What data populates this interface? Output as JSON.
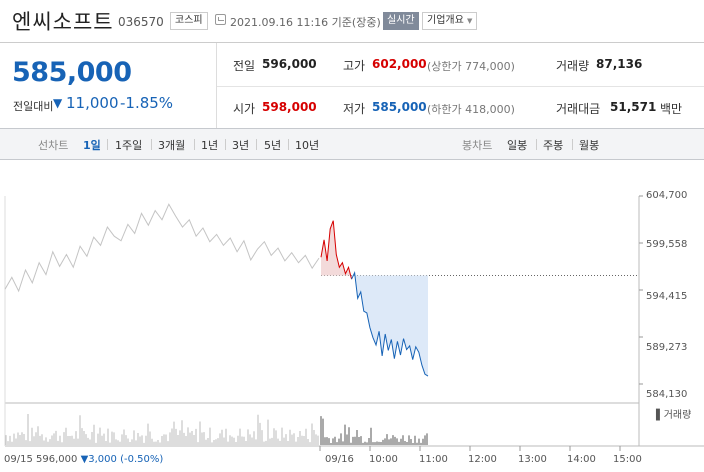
{
  "header": {
    "company_name": "엔씨소프트",
    "code": "036570",
    "market": "코스피",
    "timestamp": "2021.09.16 11:16 기준(장중)",
    "realtime_label": "실시간",
    "company_info_label": "기업개요",
    "clock_icon": "clock-icon"
  },
  "summary": {
    "price": "585,000",
    "change_label": "전일대비",
    "change_icon": "down-triangle-icon",
    "change_arrow": "▼",
    "change_value": "11,000",
    "change_pct": "-1.85%",
    "prev_close": {
      "label": "전일",
      "value": "596,000"
    },
    "high": {
      "label": "고가",
      "value": "602,000",
      "limit_label": "(상한가 774,000)"
    },
    "volume": {
      "label": "거래량",
      "value": "87,136"
    },
    "open": {
      "label": "시가",
      "value": "598,000"
    },
    "low": {
      "label": "저가",
      "value": "585,000",
      "limit_label": "(하한가 418,000)"
    },
    "trade_value": {
      "label": "거래대금",
      "value": "51,571",
      "unit": "백만"
    }
  },
  "tabs": {
    "line_chart_label": "선차트",
    "line_periods": [
      "1일",
      "1주일",
      "3개월",
      "1년",
      "3년",
      "5년",
      "10년"
    ],
    "active": "1일",
    "candle_chart_label": "봉차트",
    "candle_periods": [
      "일봉",
      "주봉",
      "월봉"
    ]
  },
  "chart_data": {
    "type": "line",
    "y_ticks": [
      "604,700",
      "599,558",
      "594,415",
      "589,273",
      "584,130"
    ],
    "ylim": [
      584130,
      604700
    ],
    "reference_price": 596000,
    "x_ticks": [
      "09/16",
      "10:00",
      "11:00",
      "12:00",
      "13:00",
      "14:00",
      "15:00"
    ],
    "volume_label": "거래량",
    "prev_day_series": [
      594500,
      595800,
      594300,
      596600,
      595200,
      597400,
      596100,
      598600,
      597000,
      598300,
      596900,
      599200,
      598100,
      600200,
      599300,
      601300,
      600300,
      599800,
      601600,
      600600,
      602800,
      601500,
      603100,
      602100,
      603800,
      602500,
      601300,
      602100,
      600300,
      601200,
      599700,
      600500,
      599300,
      600100,
      598600,
      599800,
      597700,
      598900,
      599700,
      598200,
      599000,
      597600,
      598500,
      597400,
      598200,
      596800,
      597900
    ],
    "today_series": [
      598000,
      599900,
      597600,
      601100,
      602000,
      598300,
      596900,
      597400,
      596200,
      596900,
      595600,
      596300,
      593500,
      594200,
      592100,
      591900,
      590300,
      589200,
      588400,
      589900,
      587200,
      589600,
      587800,
      589000,
      586900,
      588800,
      587300,
      589100,
      587900,
      588300,
      586800,
      588200,
      587600,
      586200,
      585200,
      585000
    ],
    "footer": {
      "date": "09/15",
      "price": "596,000",
      "arrow": "▼",
      "change": "3,000",
      "pct": "(-0.50%)"
    }
  },
  "colors": {
    "up": "#d60000",
    "down": "#1763b6",
    "prev": "#c4c4c4",
    "fill_up": "#f3dada",
    "fill_down": "#dde9f8"
  }
}
